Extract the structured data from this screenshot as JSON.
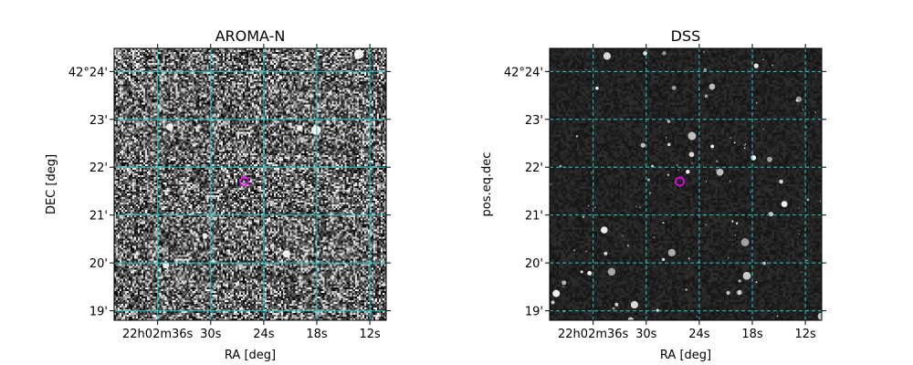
{
  "colors": {
    "grid": "#22c7c7",
    "marker": "#ff00ff",
    "axes": "#000000",
    "background": "#ffffff"
  },
  "chart_data": [
    {
      "type": "image",
      "title": "AROMA-N",
      "xlabel": "RA [deg]",
      "ylabel": "DEC [deg]",
      "x_ticks": [
        {
          "ra_sec": 36,
          "label": "22h02m36s"
        },
        {
          "ra_sec": 30,
          "label": "30s"
        },
        {
          "ra_sec": 24,
          "label": "24s"
        },
        {
          "ra_sec": 18,
          "label": "18s"
        },
        {
          "ra_sec": 12,
          "label": "12s"
        }
      ],
      "y_ticks": [
        {
          "dec_arcmin": 24,
          "label": "42°24'"
        },
        {
          "dec_arcmin": 23,
          "label": "23'"
        },
        {
          "dec_arcmin": 22,
          "label": "22'"
        },
        {
          "dec_arcmin": 21,
          "label": "21'"
        },
        {
          "dec_arcmin": 20,
          "label": "20'"
        },
        {
          "dec_arcmin": 19,
          "label": "19'"
        }
      ],
      "grid": true,
      "image_style": "noisy grayscale",
      "marker": {
        "ra_sec": 26.2,
        "dec_arcmin": 21.7,
        "shape": "circle"
      }
    },
    {
      "type": "image",
      "title": "DSS",
      "xlabel": "RA [deg]",
      "ylabel": "pos.eq.dec",
      "x_ticks": [
        {
          "ra_sec": 36,
          "label": "22h02m36s"
        },
        {
          "ra_sec": 30,
          "label": "30s"
        },
        {
          "ra_sec": 24,
          "label": "24s"
        },
        {
          "ra_sec": 18,
          "label": "18s"
        },
        {
          "ra_sec": 12,
          "label": "12s"
        }
      ],
      "y_ticks": [
        {
          "dec_arcmin": 24,
          "label": "42°24'"
        },
        {
          "dec_arcmin": 23,
          "label": "23'"
        },
        {
          "dec_arcmin": 22,
          "label": "22'"
        },
        {
          "dec_arcmin": 21,
          "label": "21'"
        },
        {
          "dec_arcmin": 20,
          "label": "20'"
        },
        {
          "dec_arcmin": 19,
          "label": "19'"
        }
      ],
      "grid": true,
      "image_style": "dark star field",
      "marker": {
        "ra_sec": 26.2,
        "dec_arcmin": 21.7,
        "shape": "circle"
      }
    }
  ]
}
